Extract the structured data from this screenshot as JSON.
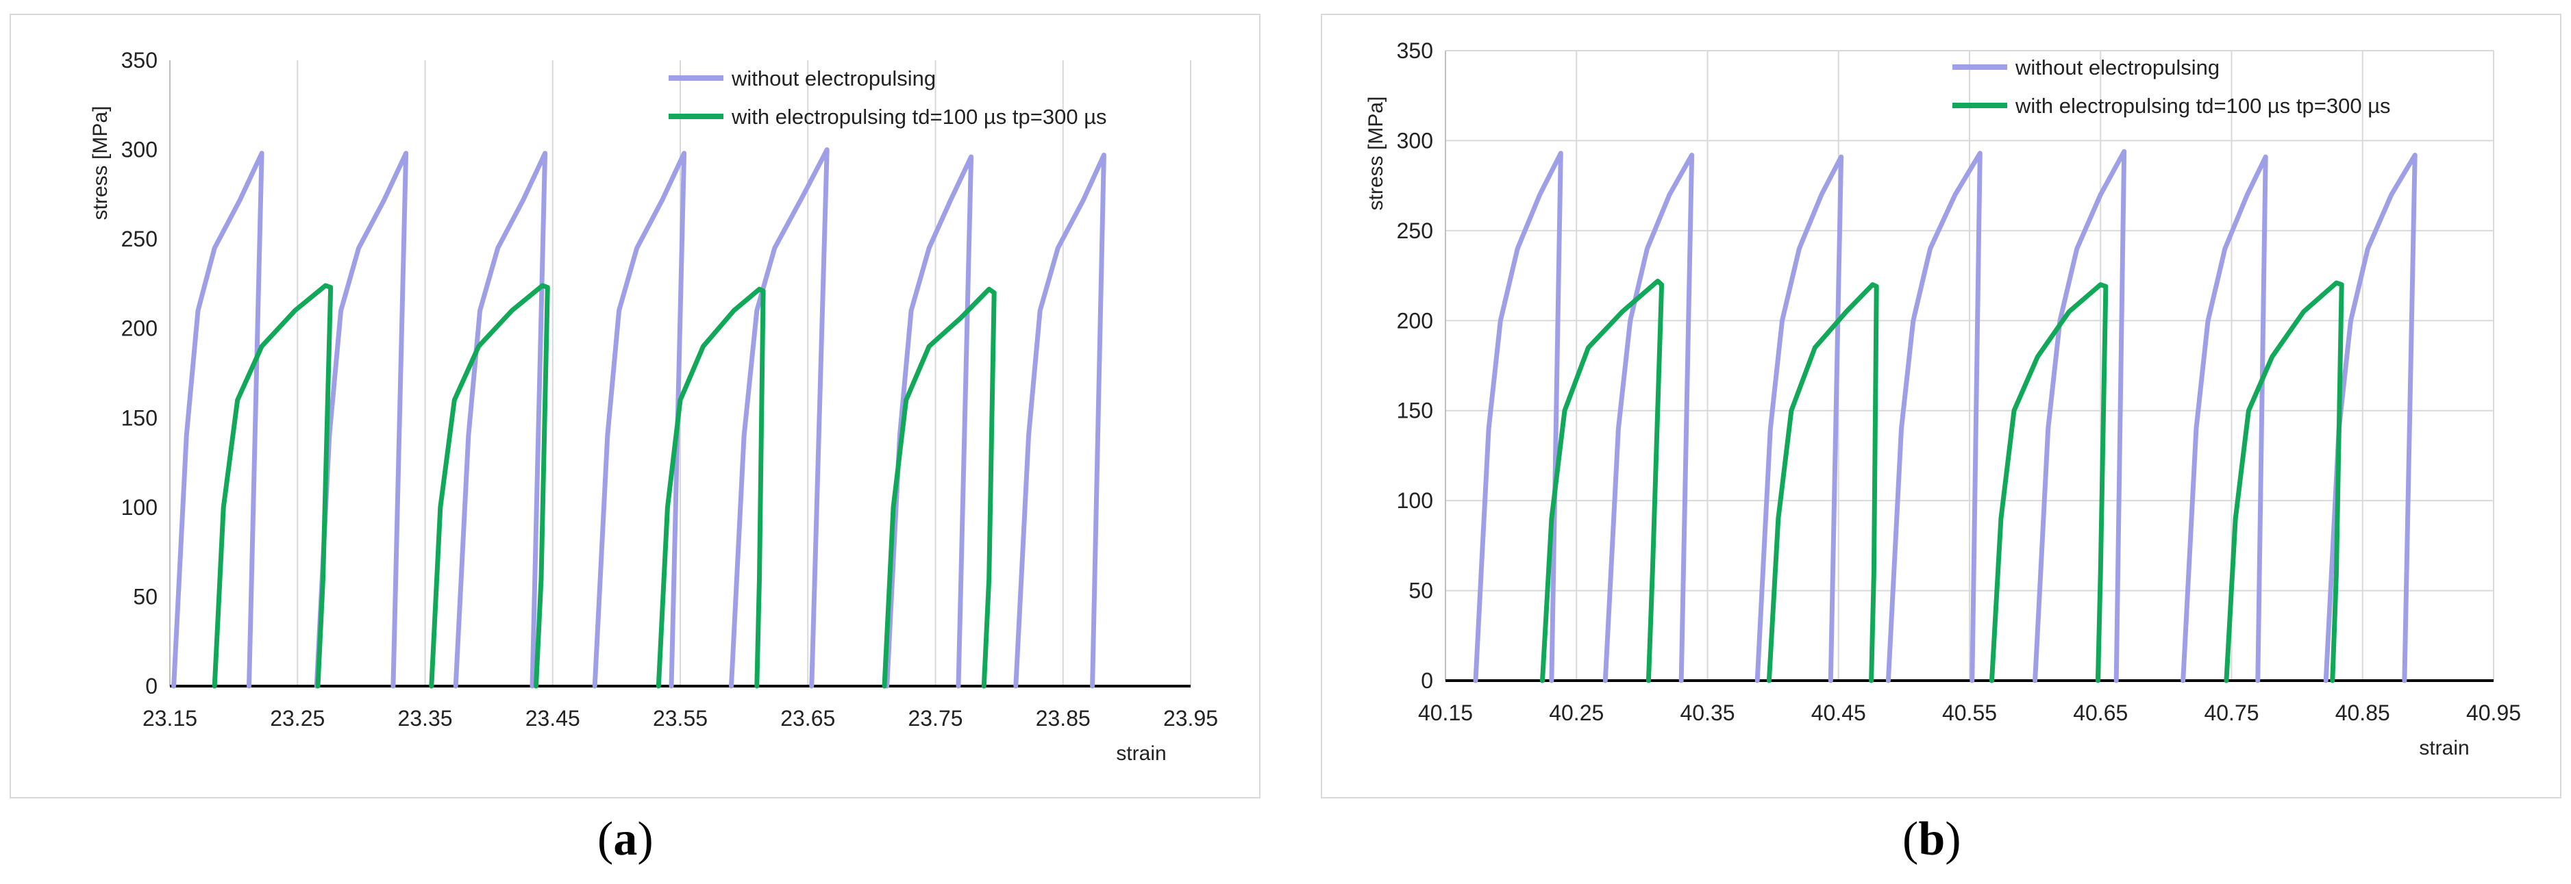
{
  "chart_data": [
    {
      "id": "a",
      "type": "line",
      "ylabel": "stress [MPa]",
      "xlabel": "strain",
      "xlim": [
        23.15,
        23.95
      ],
      "ylim": [
        0,
        350
      ],
      "xticks": [
        "23.15",
        "23.25",
        "23.35",
        "23.45",
        "23.55",
        "23.65",
        "23.75",
        "23.85",
        "23.95"
      ],
      "yticks": [
        "0",
        "50",
        "100",
        "150",
        "200",
        "250",
        "300",
        "350"
      ],
      "grid": "vertical",
      "legend": "top-right",
      "caption": "a",
      "colors": {
        "without": "#9f9fe8",
        "with": "#12a85a"
      },
      "series": [
        {
          "name": "without electropulsing",
          "cycles": [
            [
              [
                23.153,
                0
              ],
              [
                23.158,
                70
              ],
              [
                23.163,
                140
              ],
              [
                23.172,
                210
              ],
              [
                23.185,
                245
              ],
              [
                23.205,
                272
              ],
              [
                23.222,
                298
              ],
              [
                23.212,
                0
              ]
            ],
            [
              [
                23.265,
                0
              ],
              [
                23.27,
                70
              ],
              [
                23.275,
                140
              ],
              [
                23.284,
                210
              ],
              [
                23.298,
                245
              ],
              [
                23.318,
                272
              ],
              [
                23.335,
                298
              ],
              [
                23.325,
                0
              ]
            ],
            [
              [
                23.374,
                0
              ],
              [
                23.379,
                70
              ],
              [
                23.384,
                140
              ],
              [
                23.393,
                210
              ],
              [
                23.407,
                245
              ],
              [
                23.427,
                272
              ],
              [
                23.444,
                298
              ],
              [
                23.434,
                0
              ]
            ],
            [
              [
                23.483,
                0
              ],
              [
                23.488,
                70
              ],
              [
                23.493,
                140
              ],
              [
                23.502,
                210
              ],
              [
                23.516,
                245
              ],
              [
                23.536,
                272
              ],
              [
                23.553,
                298
              ],
              [
                23.543,
                0
              ]
            ],
            [
              [
                23.59,
                0
              ],
              [
                23.595,
                70
              ],
              [
                23.6,
                140
              ],
              [
                23.61,
                210
              ],
              [
                23.624,
                245
              ],
              [
                23.646,
                274
              ],
              [
                23.665,
                300
              ],
              [
                23.653,
                0
              ]
            ],
            [
              [
                23.712,
                0
              ],
              [
                23.717,
                70
              ],
              [
                23.722,
                140
              ],
              [
                23.731,
                210
              ],
              [
                23.745,
                245
              ],
              [
                23.762,
                272
              ],
              [
                23.778,
                296
              ],
              [
                23.768,
                0
              ]
            ],
            [
              [
                23.813,
                0
              ],
              [
                23.818,
                70
              ],
              [
                23.823,
                140
              ],
              [
                23.832,
                210
              ],
              [
                23.846,
                245
              ],
              [
                23.866,
                272
              ],
              [
                23.882,
                297
              ],
              [
                23.873,
                0
              ]
            ]
          ]
        },
        {
          "name": "with electropulsing  td=100 µs  tp=300 µs",
          "cycles": [
            [
              [
                23.185,
                0
              ],
              [
                23.192,
                100
              ],
              [
                23.203,
                160
              ],
              [
                23.222,
                190
              ],
              [
                23.248,
                210
              ],
              [
                23.272,
                224
              ],
              [
                23.276,
                223
              ],
              [
                23.27,
                60
              ],
              [
                23.266,
                0
              ]
            ],
            [
              [
                23.355,
                0
              ],
              [
                23.362,
                100
              ],
              [
                23.373,
                160
              ],
              [
                23.392,
                190
              ],
              [
                23.418,
                210
              ],
              [
                23.442,
                224
              ],
              [
                23.446,
                223
              ],
              [
                23.441,
                60
              ],
              [
                23.437,
                0
              ]
            ],
            [
              [
                23.533,
                0
              ],
              [
                23.54,
                100
              ],
              [
                23.55,
                160
              ],
              [
                23.568,
                190
              ],
              [
                23.592,
                210
              ],
              [
                23.612,
                222
              ],
              [
                23.615,
                221
              ],
              [
                23.612,
                60
              ],
              [
                23.61,
                0
              ]
            ],
            [
              [
                23.71,
                0
              ],
              [
                23.717,
                100
              ],
              [
                23.727,
                160
              ],
              [
                23.745,
                190
              ],
              [
                23.77,
                206
              ],
              [
                23.792,
                222
              ],
              [
                23.796,
                220
              ],
              [
                23.792,
                60
              ],
              [
                23.788,
                0
              ]
            ]
          ]
        }
      ]
    },
    {
      "id": "b",
      "type": "line",
      "ylabel": "stress [MPa]",
      "xlabel": "strain",
      "xlim": [
        40.15,
        40.95
      ],
      "ylim": [
        0,
        350
      ],
      "xticks": [
        "40.15",
        "40.25",
        "40.35",
        "40.45",
        "40.55",
        "40.65",
        "40.75",
        "40.85",
        "40.95"
      ],
      "yticks": [
        "0",
        "50",
        "100",
        "150",
        "200",
        "250",
        "300",
        "350"
      ],
      "grid": "both",
      "legend": "top-right",
      "caption": "b",
      "colors": {
        "without": "#9f9fe8",
        "with": "#12a85a"
      },
      "series": [
        {
          "name": "without electropulsing",
          "cycles": [
            [
              [
                40.173,
                0
              ],
              [
                40.178,
                70
              ],
              [
                40.183,
                140
              ],
              [
                40.192,
                200
              ],
              [
                40.205,
                240
              ],
              [
                40.222,
                270
              ],
              [
                40.238,
                293
              ],
              [
                40.231,
                0
              ]
            ],
            [
              [
                40.272,
                0
              ],
              [
                40.277,
                70
              ],
              [
                40.282,
                140
              ],
              [
                40.291,
                200
              ],
              [
                40.304,
                240
              ],
              [
                40.321,
                270
              ],
              [
                40.338,
                292
              ],
              [
                40.33,
                0
              ]
            ],
            [
              [
                40.388,
                0
              ],
              [
                40.393,
                70
              ],
              [
                40.398,
                140
              ],
              [
                40.407,
                200
              ],
              [
                40.42,
                240
              ],
              [
                40.437,
                270
              ],
              [
                40.452,
                291
              ],
              [
                40.444,
                0
              ]
            ],
            [
              [
                40.488,
                0
              ],
              [
                40.493,
                70
              ],
              [
                40.498,
                140
              ],
              [
                40.507,
                200
              ],
              [
                40.52,
                240
              ],
              [
                40.539,
                270
              ],
              [
                40.558,
                293
              ],
              [
                40.552,
                0
              ]
            ],
            [
              [
                40.6,
                0
              ],
              [
                40.605,
                70
              ],
              [
                40.61,
                140
              ],
              [
                40.619,
                200
              ],
              [
                40.632,
                240
              ],
              [
                40.65,
                270
              ],
              [
                40.668,
                294
              ],
              [
                40.662,
                0
              ]
            ],
            [
              [
                40.713,
                0
              ],
              [
                40.718,
                70
              ],
              [
                40.723,
                140
              ],
              [
                40.732,
                200
              ],
              [
                40.745,
                240
              ],
              [
                40.762,
                270
              ],
              [
                40.776,
                291
              ],
              [
                40.77,
                0
              ]
            ],
            [
              [
                40.822,
                0
              ],
              [
                40.827,
                70
              ],
              [
                40.832,
                140
              ],
              [
                40.841,
                200
              ],
              [
                40.854,
                240
              ],
              [
                40.872,
                270
              ],
              [
                40.89,
                292
              ],
              [
                40.882,
                0
              ]
            ]
          ]
        },
        {
          "name": "with electropulsing  td=100 µs  tp=300 µs",
          "cycles": [
            [
              [
                40.224,
                0
              ],
              [
                40.231,
                90
              ],
              [
                40.241,
                150
              ],
              [
                40.259,
                185
              ],
              [
                40.285,
                205
              ],
              [
                40.312,
                222
              ],
              [
                40.315,
                220
              ],
              [
                40.308,
                60
              ],
              [
                40.305,
                0
              ]
            ],
            [
              [
                40.397,
                0
              ],
              [
                40.404,
                90
              ],
              [
                40.414,
                150
              ],
              [
                40.432,
                185
              ],
              [
                40.456,
                205
              ],
              [
                40.476,
                220
              ],
              [
                40.479,
                219
              ],
              [
                40.477,
                60
              ],
              [
                40.475,
                0
              ]
            ],
            [
              [
                40.567,
                0
              ],
              [
                40.574,
                90
              ],
              [
                40.584,
                150
              ],
              [
                40.602,
                180
              ],
              [
                40.626,
                205
              ],
              [
                40.65,
                220
              ],
              [
                40.654,
                219
              ],
              [
                40.65,
                60
              ],
              [
                40.648,
                0
              ]
            ],
            [
              [
                40.746,
                0
              ],
              [
                40.753,
                90
              ],
              [
                40.763,
                150
              ],
              [
                40.781,
                180
              ],
              [
                40.805,
                205
              ],
              [
                40.83,
                221
              ],
              [
                40.834,
                220
              ],
              [
                40.83,
                60
              ],
              [
                40.827,
                0
              ]
            ]
          ]
        }
      ]
    }
  ]
}
